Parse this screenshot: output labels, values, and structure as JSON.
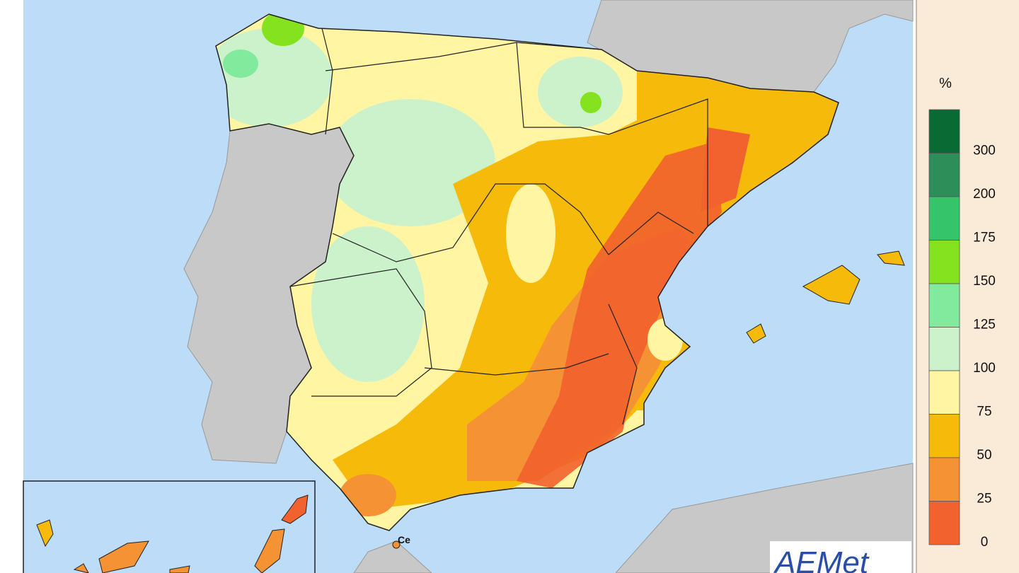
{
  "legend": {
    "title": "%",
    "items": [
      {
        "label": "300",
        "color": "#0a6a34"
      },
      {
        "label": "200",
        "color": "#2e8e5a"
      },
      {
        "label": "175",
        "color": "#36c46a"
      },
      {
        "label": "150",
        "color": "#84e21e"
      },
      {
        "label": "125",
        "color": "#82ea9c"
      },
      {
        "label": "100",
        "color": "#ccf2cc"
      },
      {
        "label": "75",
        "color": "#fff5a2"
      },
      {
        "label": "50",
        "color": "#f6ba0a"
      },
      {
        "label": "25",
        "color": "#f59234"
      },
      {
        "label": "0",
        "color": "#f2622e"
      }
    ]
  },
  "place_label": "Ce",
  "logo": "AEMet"
}
